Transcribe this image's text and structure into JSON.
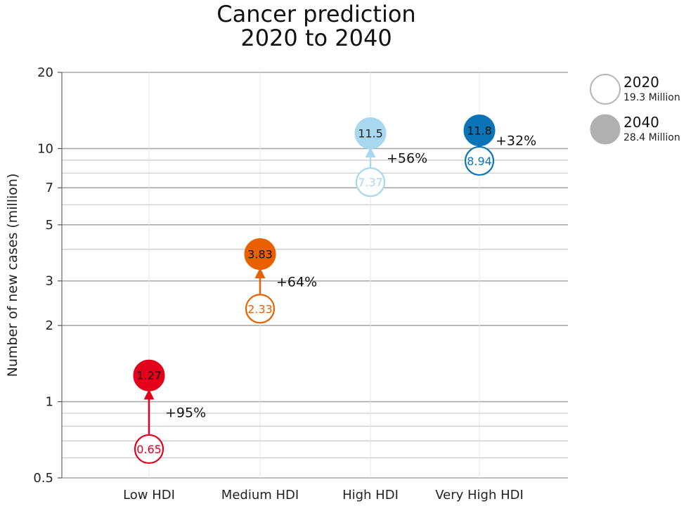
{
  "chart_data": {
    "type": "scatter",
    "title": "Cancer prediction",
    "subtitle": "2020 to 2040",
    "xlabel": "",
    "ylabel": "Number of new cases (million)",
    "yscale": "log",
    "ylim": [
      0.5,
      20
    ],
    "yticks": [
      {
        "value": 0.5,
        "label": "0.5"
      },
      {
        "value": 1,
        "label": "1"
      },
      {
        "value": 2,
        "label": "2"
      },
      {
        "value": 3,
        "label": "3"
      },
      {
        "value": 5,
        "label": "5"
      },
      {
        "value": 7,
        "label": "7"
      },
      {
        "value": 10,
        "label": "10"
      },
      {
        "value": 20,
        "label": "20"
      }
    ],
    "grid": true,
    "categories": [
      "Low HDI",
      "Medium HDI",
      "High HDI",
      "Very High HDI"
    ],
    "series": [
      {
        "name": "2020",
        "style": "open",
        "values": [
          0.65,
          2.33,
          7.37,
          8.94
        ],
        "labels": [
          "0.65",
          "2.33",
          "7.37",
          "8.94"
        ]
      },
      {
        "name": "2040",
        "style": "filled",
        "values": [
          1.27,
          3.83,
          11.5,
          11.8
        ],
        "labels": [
          "1.27",
          "3.83",
          "11.5",
          "11.8"
        ]
      }
    ],
    "changes": [
      "+95%",
      "+64%",
      "+56%",
      "+32%"
    ],
    "colors": [
      "#e3001b",
      "#e96000",
      "#a8d8ef",
      "#0a74b6"
    ],
    "legend": {
      "position": "top-right",
      "items": [
        {
          "label": "2020",
          "total": "19.3 Million",
          "style": "open"
        },
        {
          "label": "2040",
          "total": "28.4 Million",
          "style": "filled"
        }
      ]
    }
  }
}
